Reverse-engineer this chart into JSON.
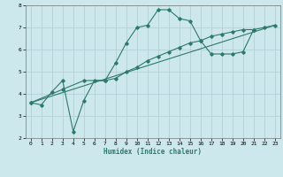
{
  "xlabel": "Humidex (Indice chaleur)",
  "ylabel": "",
  "bg_color": "#cce8ec",
  "line_color": "#2d7a6a",
  "grid_color": "#aacdd4",
  "xlim": [
    -0.5,
    23.5
  ],
  "ylim": [
    2,
    8
  ],
  "xticks": [
    0,
    1,
    2,
    3,
    4,
    5,
    6,
    7,
    8,
    9,
    10,
    11,
    12,
    13,
    14,
    15,
    16,
    17,
    18,
    19,
    20,
    21,
    22,
    23
  ],
  "yticks": [
    2,
    3,
    4,
    5,
    6,
    7,
    8
  ],
  "curve1_x": [
    0,
    1,
    2,
    3,
    4,
    5,
    6,
    7,
    8,
    9,
    10,
    11,
    12,
    13,
    14,
    15,
    16,
    17,
    18,
    19,
    20,
    21
  ],
  "curve1_y": [
    3.6,
    3.5,
    4.1,
    4.6,
    2.3,
    3.7,
    4.6,
    4.6,
    5.4,
    6.3,
    7.0,
    7.1,
    7.8,
    7.8,
    7.4,
    7.3,
    6.4,
    5.8,
    5.8,
    5.8,
    5.9,
    6.9
  ],
  "curve2_x": [
    0,
    3,
    5,
    7,
    8,
    9,
    10,
    11,
    12,
    13,
    14,
    15,
    16,
    17,
    18,
    19,
    20,
    21,
    22,
    23
  ],
  "curve2_y": [
    3.6,
    4.2,
    4.6,
    4.6,
    4.7,
    5.0,
    5.2,
    5.5,
    5.7,
    5.9,
    6.1,
    6.3,
    6.4,
    6.6,
    6.7,
    6.8,
    6.9,
    6.9,
    7.0,
    7.1
  ],
  "curve3_x": [
    0,
    23
  ],
  "curve3_y": [
    3.6,
    7.1
  ]
}
